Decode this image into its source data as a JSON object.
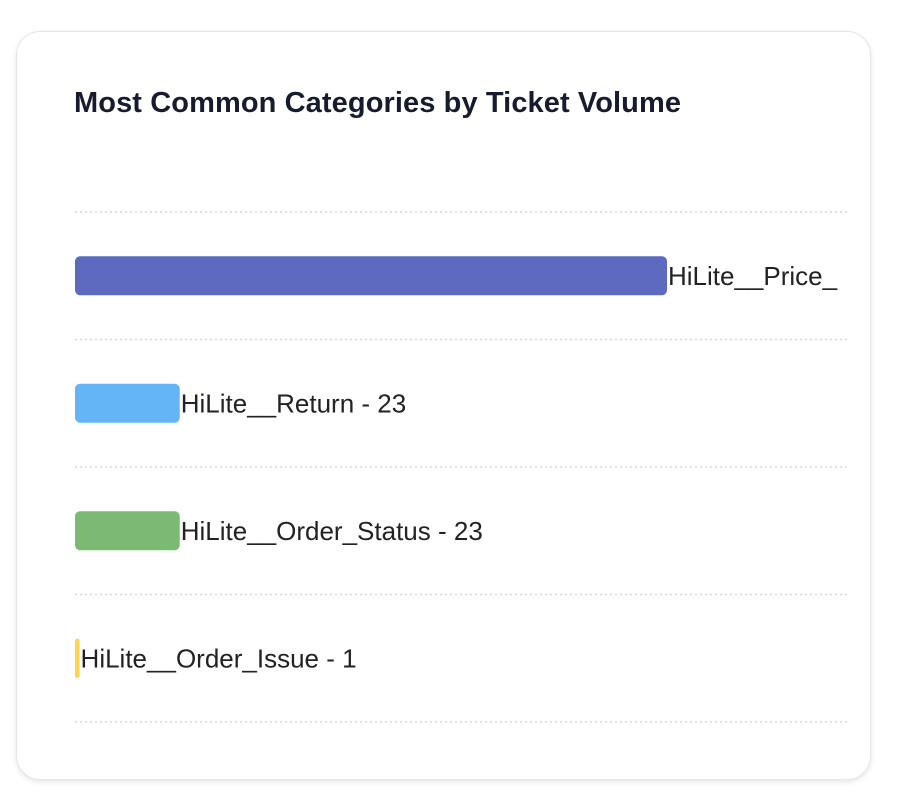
{
  "card": {
    "title": "Most Common Categories by Ticket Volume"
  },
  "chart_data": {
    "type": "bar",
    "orientation": "horizontal",
    "title": "Most Common Categories by Ticket Volume",
    "xlabel": "",
    "ylabel": "",
    "grid": true,
    "legend": "none",
    "categories": [
      "HiLite__Price_",
      "HiLite__Return",
      "HiLite__Order_Status",
      "HiLite__Order_Issue"
    ],
    "values": [
      130,
      23,
      23,
      1
    ],
    "labels": [
      "HiLite__Price_",
      "HiLite__Return - 23",
      "HiLite__Order_Status - 23",
      "HiLite__Order_Issue - 1"
    ],
    "colors": [
      "#5c6bc0",
      "#64b5f6",
      "#7cb974",
      "#ffd54f"
    ],
    "xlim": [
      0,
      130
    ]
  }
}
